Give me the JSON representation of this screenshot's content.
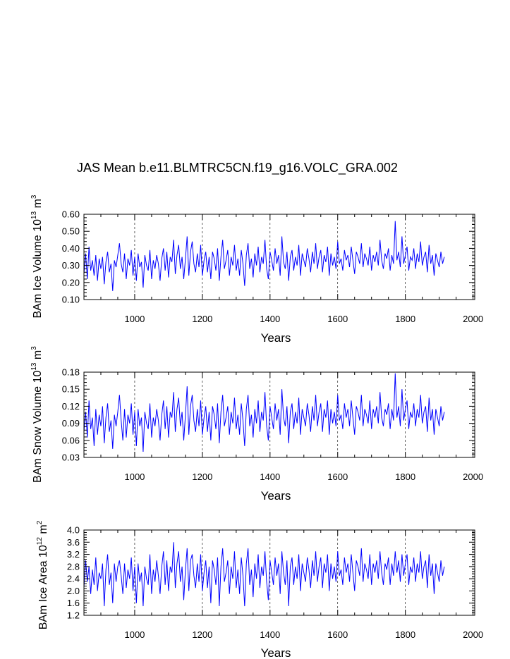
{
  "title": "JAS Mean b.e11.BLMTRC5CN.f19_g16.VOLC_GRA.002",
  "chart_data": [
    {
      "type": "line",
      "xlabel": "Years",
      "ylabel_main": "BAm Ice Volume 10",
      "ylabel_exp1": "13",
      "ylabel_mid": " m",
      "ylabel_exp2": "3",
      "xlim": [
        850,
        2005
      ],
      "ylim": [
        0.1,
        0.6
      ],
      "xticks": [
        "1000",
        "1200",
        "1400",
        "1600",
        "1800",
        "2000"
      ],
      "xtick_values": [
        1000,
        1200,
        1400,
        1600,
        1800,
        2000
      ],
      "yticks": [
        "0.10",
        "0.20",
        "0.30",
        "0.40",
        "0.50",
        "0.60"
      ],
      "ytick_values": [
        0.1,
        0.2,
        0.3,
        0.4,
        0.5,
        0.6
      ],
      "grid": "vertical dashed at x ticks",
      "series": [
        {
          "color": "#0000ff",
          "x_start": 850,
          "x_end": 2005,
          "x_step": 5,
          "values": [
            0.25,
            0.37,
            0.22,
            0.41,
            0.27,
            0.33,
            0.24,
            0.36,
            0.21,
            0.34,
            0.28,
            0.35,
            0.19,
            0.32,
            0.38,
            0.26,
            0.31,
            0.15,
            0.33,
            0.29,
            0.36,
            0.43,
            0.31,
            0.26,
            0.37,
            0.22,
            0.34,
            0.3,
            0.39,
            0.24,
            0.35,
            0.21,
            0.37,
            0.29,
            0.32,
            0.17,
            0.36,
            0.3,
            0.27,
            0.39,
            0.22,
            0.33,
            0.28,
            0.36,
            0.31,
            0.21,
            0.34,
            0.4,
            0.27,
            0.38,
            0.23,
            0.35,
            0.32,
            0.45,
            0.25,
            0.36,
            0.42,
            0.28,
            0.35,
            0.22,
            0.34,
            0.47,
            0.24,
            0.38,
            0.44,
            0.31,
            0.26,
            0.37,
            0.29,
            0.42,
            0.24,
            0.33,
            0.38,
            0.26,
            0.35,
            0.22,
            0.38,
            0.34,
            0.27,
            0.4,
            0.21,
            0.35,
            0.45,
            0.28,
            0.33,
            0.39,
            0.24,
            0.35,
            0.3,
            0.42,
            0.27,
            0.34,
            0.24,
            0.39,
            0.31,
            0.18,
            0.36,
            0.43,
            0.28,
            0.34,
            0.23,
            0.37,
            0.3,
            0.41,
            0.26,
            0.35,
            0.31,
            0.45,
            0.28,
            0.22,
            0.38,
            0.33,
            0.27,
            0.4,
            0.31,
            0.36,
            0.24,
            0.47,
            0.32,
            0.28,
            0.38,
            0.21,
            0.35,
            0.39,
            0.27,
            0.35,
            0.3,
            0.42,
            0.24,
            0.37,
            0.33,
            0.29,
            0.4,
            0.34,
            0.26,
            0.38,
            0.31,
            0.43,
            0.28,
            0.35,
            0.39,
            0.26,
            0.36,
            0.32,
            0.41,
            0.24,
            0.37,
            0.3,
            0.35,
            0.28,
            0.44,
            0.31,
            0.34,
            0.27,
            0.39,
            0.33,
            0.36,
            0.29,
            0.41,
            0.33,
            0.25,
            0.38,
            0.35,
            0.31,
            0.43,
            0.29,
            0.37,
            0.34,
            0.3,
            0.41,
            0.27,
            0.36,
            0.32,
            0.38,
            0.3,
            0.45,
            0.33,
            0.28,
            0.37,
            0.34,
            0.4,
            0.27,
            0.36,
            0.31,
            0.56,
            0.33,
            0.38,
            0.29,
            0.47,
            0.31,
            0.36,
            0.41,
            0.27,
            0.35,
            0.33,
            0.4,
            0.28,
            0.37,
            0.32,
            0.44,
            0.3,
            0.35,
            0.38,
            0.26,
            0.42,
            0.31,
            0.36,
            0.24,
            0.37,
            0.33,
            0.29,
            0.38,
            0.31,
            0.35
          ]
        }
      ]
    },
    {
      "type": "line",
      "xlabel": "Years",
      "ylabel_main": "BAm Snow Volume 10",
      "ylabel_exp1": "13",
      "ylabel_mid": " m",
      "ylabel_exp2": "3",
      "xlim": [
        850,
        2005
      ],
      "ylim": [
        0.03,
        0.18
      ],
      "xticks": [
        "1000",
        "1200",
        "1400",
        "1600",
        "1800",
        "2000"
      ],
      "xtick_values": [
        1000,
        1200,
        1400,
        1600,
        1800,
        2000
      ],
      "yticks": [
        "0.03",
        "0.06",
        "0.09",
        "0.12",
        "0.15",
        "0.18"
      ],
      "ytick_values": [
        0.03,
        0.06,
        0.09,
        0.12,
        0.15,
        0.18
      ],
      "grid": "vertical dashed at x ticks",
      "series": [
        {
          "color": "#0000ff",
          "x_start": 850,
          "x_end": 2005,
          "x_step": 5,
          "values": [
            0.075,
            0.11,
            0.065,
            0.13,
            0.08,
            0.1,
            0.05,
            0.115,
            0.07,
            0.105,
            0.085,
            0.12,
            0.055,
            0.1,
            0.125,
            0.075,
            0.095,
            0.045,
            0.105,
            0.085,
            0.11,
            0.14,
            0.095,
            0.06,
            0.115,
            0.065,
            0.105,
            0.09,
            0.125,
            0.07,
            0.11,
            0.05,
            0.115,
            0.085,
            0.1,
            0.04,
            0.11,
            0.09,
            0.08,
            0.125,
            0.065,
            0.1,
            0.085,
            0.115,
            0.095,
            0.06,
            0.105,
            0.13,
            0.08,
            0.12,
            0.065,
            0.11,
            0.1,
            0.145,
            0.075,
            0.115,
            0.135,
            0.085,
            0.11,
            0.06,
            0.105,
            0.155,
            0.07,
            0.12,
            0.14,
            0.095,
            0.075,
            0.115,
            0.085,
            0.13,
            0.07,
            0.1,
            0.12,
            0.075,
            0.11,
            0.06,
            0.12,
            0.105,
            0.08,
            0.125,
            0.055,
            0.11,
            0.14,
            0.085,
            0.1,
            0.12,
            0.07,
            0.11,
            0.09,
            0.135,
            0.08,
            0.105,
            0.07,
            0.125,
            0.095,
            0.05,
            0.115,
            0.14,
            0.085,
            0.105,
            0.065,
            0.115,
            0.09,
            0.13,
            0.075,
            0.11,
            0.095,
            0.145,
            0.085,
            0.06,
            0.12,
            0.1,
            0.08,
            0.125,
            0.095,
            0.115,
            0.07,
            0.15,
            0.1,
            0.085,
            0.12,
            0.055,
            0.11,
            0.125,
            0.08,
            0.11,
            0.09,
            0.135,
            0.07,
            0.115,
            0.1,
            0.085,
            0.125,
            0.105,
            0.075,
            0.12,
            0.095,
            0.14,
            0.085,
            0.11,
            0.125,
            0.075,
            0.115,
            0.1,
            0.13,
            0.07,
            0.115,
            0.09,
            0.11,
            0.085,
            0.14,
            0.095,
            0.105,
            0.08,
            0.125,
            0.1,
            0.115,
            0.085,
            0.13,
            0.1,
            0.07,
            0.12,
            0.11,
            0.095,
            0.14,
            0.085,
            0.115,
            0.105,
            0.09,
            0.13,
            0.08,
            0.115,
            0.1,
            0.12,
            0.09,
            0.145,
            0.1,
            0.085,
            0.115,
            0.105,
            0.125,
            0.08,
            0.115,
            0.095,
            0.178,
            0.1,
            0.12,
            0.085,
            0.15,
            0.095,
            0.115,
            0.13,
            0.08,
            0.11,
            0.1,
            0.125,
            0.085,
            0.115,
            0.1,
            0.14,
            0.09,
            0.11,
            0.12,
            0.075,
            0.135,
            0.095,
            0.115,
            0.07,
            0.115,
            0.1,
            0.085,
            0.12,
            0.095,
            0.11
          ]
        }
      ]
    },
    {
      "type": "line",
      "xlabel": "Years",
      "ylabel_main": "BAm Ice Area 10",
      "ylabel_exp1": "12",
      "ylabel_mid": " m",
      "ylabel_exp2": "2",
      "xlim": [
        850,
        2005
      ],
      "ylim": [
        1.2,
        4.0
      ],
      "xticks": [
        "1000",
        "1200",
        "1400",
        "1600",
        "1800",
        "2000"
      ],
      "xtick_values": [
        1000,
        1200,
        1400,
        1600,
        1800,
        2000
      ],
      "yticks": [
        "1.2",
        "1.6",
        "2.0",
        "2.4",
        "2.8",
        "3.2",
        "3.6",
        "4.0"
      ],
      "ytick_values": [
        1.2,
        1.6,
        2.0,
        2.4,
        2.8,
        3.2,
        3.6,
        4.0
      ],
      "grid": "vertical dashed at x ticks",
      "series": [
        {
          "color": "#0000ff",
          "x_start": 850,
          "x_end": 2005,
          "x_step": 5,
          "values": [
            2.1,
            3.0,
            2.3,
            2.8,
            1.9,
            2.7,
            2.2,
            3.1,
            2.0,
            2.6,
            2.4,
            2.9,
            1.5,
            2.7,
            3.2,
            2.2,
            2.6,
            1.6,
            2.9,
            2.3,
            2.8,
            3.0,
            2.5,
            1.9,
            2.9,
            2.1,
            2.7,
            2.4,
            3.1,
            2.0,
            2.8,
            1.6,
            2.9,
            2.3,
            2.6,
            1.5,
            2.8,
            2.4,
            2.2,
            3.2,
            1.9,
            2.7,
            2.3,
            3.0,
            2.5,
            1.9,
            2.8,
            3.3,
            2.2,
            3.0,
            2.0,
            2.8,
            2.6,
            3.6,
            2.1,
            2.9,
            3.3,
            2.3,
            2.8,
            1.7,
            2.7,
            3.4,
            2.0,
            3.0,
            3.2,
            2.5,
            2.1,
            2.9,
            2.3,
            3.2,
            2.0,
            2.6,
            3.0,
            2.1,
            2.8,
            1.6,
            3.0,
            2.7,
            2.2,
            3.1,
            1.5,
            2.8,
            3.4,
            2.3,
            2.6,
            3.0,
            1.9,
            2.8,
            2.4,
            3.3,
            2.1,
            2.7,
            1.9,
            3.1,
            2.5,
            1.5,
            2.9,
            3.4,
            2.2,
            2.7,
            1.8,
            2.9,
            2.4,
            3.2,
            2.1,
            2.8,
            2.5,
            3.3,
            2.3,
            1.7,
            3.0,
            2.6,
            2.2,
            3.1,
            2.5,
            2.9,
            1.9,
            3.3,
            2.6,
            2.2,
            3.0,
            1.5,
            2.8,
            3.1,
            2.2,
            2.8,
            2.4,
            3.2,
            2.0,
            2.9,
            2.6,
            2.3,
            3.1,
            2.7,
            2.1,
            3.0,
            2.5,
            3.3,
            2.3,
            2.8,
            3.1,
            2.1,
            2.9,
            2.6,
            3.2,
            2.0,
            2.9,
            2.4,
            2.8,
            2.3,
            3.3,
            2.5,
            2.7,
            2.2,
            3.1,
            2.6,
            2.9,
            2.3,
            3.2,
            2.6,
            2.0,
            3.0,
            2.8,
            2.5,
            3.4,
            2.3,
            2.9,
            2.7,
            2.4,
            3.2,
            2.2,
            2.9,
            2.6,
            3.0,
            2.4,
            3.3,
            2.6,
            2.2,
            2.9,
            2.7,
            3.1,
            2.2,
            2.9,
            2.5,
            3.3,
            2.6,
            3.0,
            2.3,
            3.2,
            2.5,
            2.9,
            3.2,
            2.2,
            2.8,
            2.6,
            3.1,
            2.3,
            2.9,
            2.6,
            3.3,
            2.4,
            2.8,
            3.0,
            2.1,
            3.2,
            2.5,
            2.9,
            1.9,
            2.9,
            2.6,
            2.3,
            3.0,
            2.5,
            2.8
          ]
        }
      ]
    }
  ]
}
